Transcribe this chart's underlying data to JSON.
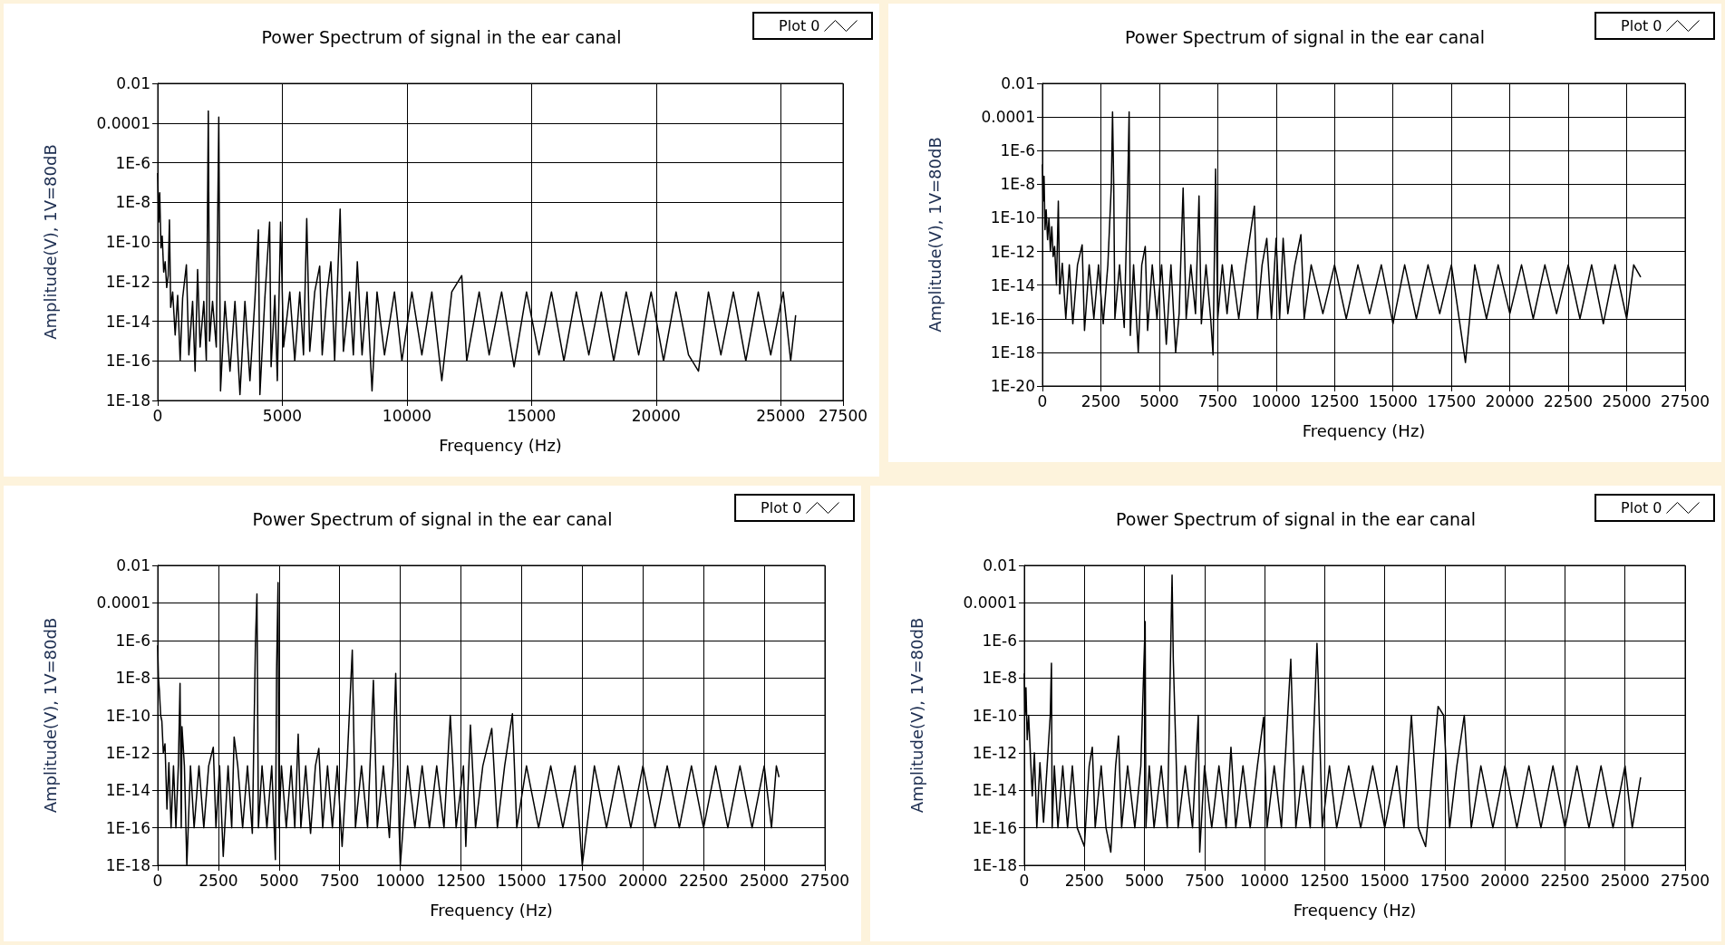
{
  "chart_data": [
    {
      "type": "line",
      "title": "Power Spectrum of signal in the ear canal",
      "xlabel": "Frequency (Hz)",
      "ylabel": "Amplitude(V), 1V=80dB",
      "log": "y",
      "grid": true,
      "legend": "top right",
      "xlim": [
        0,
        27500
      ],
      "xticks": [
        0,
        5000,
        10000,
        15000,
        20000,
        25000,
        27500
      ],
      "ylim": [
        1e-18,
        0.01
      ],
      "yticks": [
        {
          "value": 1e-18,
          "label": "1E-18"
        },
        {
          "value": 1e-16,
          "label": "1E-16"
        },
        {
          "value": 1e-14,
          "label": "1E-14"
        },
        {
          "value": 1e-12,
          "label": "1E-12"
        },
        {
          "value": 1e-10,
          "label": "1E-10"
        },
        {
          "value": 1e-08,
          "label": "1E-8"
        },
        {
          "value": 1e-06,
          "label": "1E-6"
        },
        {
          "value": 0.0001,
          "label": "0.0001"
        },
        {
          "value": 0.01,
          "label": "0.01"
        }
      ],
      "x": [
        0,
        40,
        80,
        130,
        180,
        240,
        300,
        360,
        420,
        470,
        520,
        600,
        700,
        800,
        900,
        1000,
        1150,
        1250,
        1400,
        1500,
        1600,
        1700,
        1850,
        1950,
        2000,
        2030,
        2080,
        2200,
        2350,
        2450,
        2470,
        2520,
        2700,
        2900,
        3100,
        3300,
        3500,
        3700,
        3900,
        4040,
        4100,
        4300,
        4490,
        4550,
        4700,
        4800,
        4930,
        5050,
        5300,
        5500,
        5700,
        5850,
        5980,
        6100,
        6300,
        6500,
        6600,
        6800,
        6950,
        7100,
        7320,
        7450,
        7700,
        7850,
        8010,
        8200,
        8400,
        8600,
        8800,
        9100,
        9500,
        9800,
        10200,
        10600,
        11000,
        11400,
        11800,
        12200,
        12400,
        12900,
        13300,
        13800,
        14300,
        14800,
        15300,
        15800,
        16300,
        16800,
        17300,
        17800,
        18300,
        18800,
        19300,
        19800,
        20300,
        20800,
        21300,
        21700,
        22100,
        22600,
        23100,
        23600,
        24100,
        24600,
        25100,
        25400,
        25600
      ],
      "series": [
        {
          "name": "Plot 0",
          "color": "#000000",
          "values": [
            3e-07,
            1e-09,
            3e-08,
            5e-11,
            2e-10,
            3e-12,
            1e-11,
            5e-13,
            2e-12,
            1.3e-09,
            5e-14,
            3e-13,
            2e-15,
            2e-13,
            1e-16,
            1.5e-13,
            7e-12,
            2e-16,
            1e-13,
            3e-17,
            4e-12,
            5e-16,
            1e-13,
            1e-16,
            1e-08,
            0.0004,
            1e-15,
            1e-13,
            5e-16,
            0.0002,
            1e-08,
            3e-18,
            1e-13,
            3e-17,
            1e-13,
            2e-18,
            1e-13,
            1e-17,
            1.2e-13,
            4e-10,
            2e-18,
            1.5e-13,
            1e-09,
            5e-17,
            2e-13,
            1e-17,
            1e-09,
            5e-16,
            3e-13,
            1e-16,
            3e-13,
            2e-16,
            1.5e-09,
            3e-16,
            3e-13,
            6e-12,
            2e-16,
            3e-13,
            1e-11,
            1e-16,
            4.5e-09,
            3e-16,
            3e-13,
            2e-16,
            1e-11,
            2e-16,
            3e-13,
            3e-18,
            3e-13,
            2e-16,
            3e-13,
            1e-16,
            3e-13,
            2e-16,
            3e-13,
            1e-17,
            3e-13,
            2e-12,
            1e-16,
            3e-13,
            2e-16,
            3e-13,
            5e-17,
            3e-13,
            2e-16,
            3e-13,
            1e-16,
            3e-13,
            2e-16,
            3e-13,
            1e-16,
            3e-13,
            2e-16,
            3e-13,
            1e-16,
            3e-13,
            2e-16,
            3e-17,
            3e-13,
            2e-16,
            3e-13,
            1e-16,
            3e-13,
            2e-16,
            3e-13,
            1e-16,
            2e-14
          ]
        }
      ]
    },
    {
      "type": "line",
      "title": "Power Spectrum of signal in the ear canal",
      "xlabel": "Frequency (Hz)",
      "ylabel": "Amplitude(V), 1V=80dB",
      "log": "y",
      "grid": true,
      "legend": "top right",
      "xlim": [
        0,
        27500
      ],
      "xticks": [
        0,
        2500,
        5000,
        7500,
        10000,
        12500,
        15000,
        17500,
        20000,
        22500,
        25000,
        27500
      ],
      "ylim": [
        1e-20,
        0.01
      ],
      "yticks": [
        {
          "value": 1e-20,
          "label": "1E-20"
        },
        {
          "value": 1e-18,
          "label": "1E-18"
        },
        {
          "value": 1e-16,
          "label": "1E-16"
        },
        {
          "value": 1e-14,
          "label": "1E-14"
        },
        {
          "value": 1e-12,
          "label": "1E-12"
        },
        {
          "value": 1e-10,
          "label": "1E-10"
        },
        {
          "value": 1e-08,
          "label": "1E-8"
        },
        {
          "value": 1e-06,
          "label": "1E-6"
        },
        {
          "value": 0.0001,
          "label": "0.0001"
        },
        {
          "value": 0.01,
          "label": "0.01"
        }
      ],
      "x": [
        0,
        30,
        70,
        110,
        160,
        220,
        280,
        340,
        400,
        460,
        520,
        600,
        680,
        740,
        850,
        1000,
        1150,
        1300,
        1500,
        1700,
        1800,
        2000,
        2200,
        2400,
        2600,
        2800,
        2950,
        3000,
        3050,
        3100,
        3300,
        3500,
        3650,
        3710,
        3760,
        3900,
        4100,
        4250,
        4400,
        4500,
        4700,
        4900,
        5100,
        5300,
        5500,
        5700,
        5850,
        6020,
        6150,
        6350,
        6550,
        6700,
        6800,
        7000,
        7200,
        7300,
        7410,
        7500,
        7700,
        7900,
        8100,
        8400,
        8700,
        9070,
        9200,
        9400,
        9600,
        9800,
        10000,
        10150,
        10300,
        10500,
        10800,
        11060,
        11200,
        11500,
        12000,
        12500,
        13000,
        13500,
        14000,
        14500,
        15000,
        15500,
        16000,
        16500,
        17000,
        17500,
        18100,
        18500,
        19000,
        19500,
        20000,
        20500,
        21000,
        21500,
        22000,
        22500,
        23000,
        23500,
        24000,
        24500,
        25000,
        25300,
        25600
      ],
      "series": [
        {
          "name": "Plot 0",
          "color": "#000000",
          "values": [
            1.5e-07,
            1e-09,
            3e-08,
            2e-11,
            3e-10,
            5e-12,
            1e-10,
            1e-12,
            3e-11,
            5e-13,
            2e-12,
            1e-14,
            1e-09,
            3e-15,
            2e-13,
            1e-16,
            1.6e-13,
            5e-17,
            1.6e-13,
            2.5e-12,
            2e-17,
            1.6e-13,
            1e-16,
            1.6e-13,
            5e-17,
            1.6e-13,
            1e-08,
            0.0002,
            1e-08,
            1e-16,
            1.6e-13,
            3e-17,
            1e-08,
            0.0002,
            1e-17,
            1.6e-13,
            1e-18,
            1.6e-13,
            2e-12,
            2e-17,
            1.6e-13,
            1e-16,
            1.6e-13,
            3e-18,
            1.6e-13,
            1e-18,
            2e-16,
            6e-09,
            1e-16,
            1.6e-13,
            2e-16,
            2e-09,
            5e-17,
            1.6e-13,
            1e-16,
            7e-19,
            8e-08,
            1e-16,
            1.6e-13,
            2e-16,
            1.6e-13,
            1e-16,
            1.6e-13,
            5e-10,
            1e-16,
            1.6e-13,
            6e-12,
            1e-16,
            6e-12,
            1e-16,
            6e-12,
            2e-16,
            1.6e-13,
            1e-11,
            1e-16,
            1.6e-13,
            2e-16,
            1.6e-13,
            1e-16,
            1.6e-13,
            2e-16,
            1.6e-13,
            5e-17,
            1.6e-13,
            1e-16,
            1.6e-13,
            2e-16,
            1.6e-13,
            2.5e-19,
            1.6e-13,
            1e-16,
            1.6e-13,
            2e-16,
            1.6e-13,
            1e-16,
            1.6e-13,
            2e-16,
            1.6e-13,
            1e-16,
            1.6e-13,
            5e-17,
            1.6e-13,
            1e-16,
            1.6e-13,
            3e-14
          ]
        }
      ]
    },
    {
      "type": "line",
      "title": "Power Spectrum of signal in the ear canal",
      "xlabel": "Frequency (Hz)",
      "ylabel": "Amplitude(V), 1V=80dB",
      "log": "y",
      "grid": true,
      "legend": "top right",
      "xlim": [
        0,
        27500
      ],
      "xticks": [
        0,
        2500,
        5000,
        7500,
        10000,
        12500,
        15000,
        17500,
        20000,
        22500,
        25000,
        27500
      ],
      "ylim": [
        1e-18,
        0.01
      ],
      "yticks": [
        {
          "value": 1e-18,
          "label": "1E-18"
        },
        {
          "value": 1e-16,
          "label": "1E-16"
        },
        {
          "value": 1e-14,
          "label": "1E-14"
        },
        {
          "value": 1e-12,
          "label": "1E-12"
        },
        {
          "value": 1e-10,
          "label": "1E-10"
        },
        {
          "value": 1e-08,
          "label": "1E-8"
        },
        {
          "value": 1e-06,
          "label": "1E-6"
        },
        {
          "value": 0.0001,
          "label": "0.0001"
        },
        {
          "value": 0.01,
          "label": "0.01"
        }
      ],
      "x": [
        0,
        30,
        70,
        120,
        170,
        230,
        300,
        380,
        460,
        550,
        650,
        750,
        850,
        920,
        970,
        1000,
        1100,
        1200,
        1350,
        1500,
        1700,
        1900,
        2100,
        2290,
        2400,
        2550,
        2700,
        2900,
        3050,
        3150,
        3300,
        3500,
        3700,
        3900,
        4030,
        4090,
        4150,
        4300,
        4500,
        4700,
        4850,
        4900,
        4960,
        5000,
        5100,
        5300,
        5500,
        5650,
        5790,
        5900,
        6100,
        6300,
        6500,
        6640,
        6800,
        7000,
        7200,
        7400,
        7600,
        7800,
        8020,
        8150,
        8400,
        8650,
        8890,
        9050,
        9300,
        9550,
        9700,
        9810,
        9950,
        10000,
        10300,
        10600,
        10900,
        11200,
        11500,
        11800,
        12060,
        12300,
        12600,
        12700,
        12890,
        13100,
        13400,
        13770,
        14000,
        14300,
        14620,
        14800,
        15200,
        15700,
        16200,
        16700,
        17200,
        17500,
        18000,
        18500,
        19000,
        19500,
        20000,
        20500,
        21000,
        21500,
        22000,
        22500,
        23000,
        23500,
        24000,
        24500,
        25000,
        25300,
        25500,
        25610
      ],
      "series": [
        {
          "name": "Plot 0",
          "color": "#000000",
          "values": [
            5.5e-07,
            1e-08,
            2e-09,
            1e-10,
            5e-11,
            1e-12,
            3e-12,
            1e-15,
            3e-13,
            1e-16,
            2e-13,
            1e-16,
            2e-13,
            5e-09,
            1e-16,
            2.5e-11,
            2e-13,
            1e-18,
            2e-13,
            1e-16,
            2e-13,
            1e-16,
            2e-13,
            2e-12,
            1e-16,
            2e-13,
            3e-18,
            2e-13,
            1e-16,
            7e-12,
            2e-13,
            1e-16,
            2e-13,
            5e-17,
            1e-06,
            0.0003,
            1e-16,
            2e-13,
            1e-16,
            2e-13,
            2e-18,
            2.7e-08,
            0.0012,
            1e-16,
            2e-13,
            1e-16,
            2e-13,
            1e-16,
            1e-11,
            1e-16,
            2e-13,
            5e-17,
            2e-13,
            1.7e-12,
            1e-16,
            2e-13,
            1e-16,
            2e-13,
            1e-17,
            2e-13,
            3e-07,
            1e-16,
            2e-13,
            1e-16,
            7.5e-09,
            1e-16,
            2e-13,
            3e-17,
            2e-13,
            1.7e-08,
            1e-16,
            1e-18,
            2e-13,
            1e-16,
            2e-13,
            1e-16,
            2e-13,
            1e-16,
            1e-10,
            1e-16,
            2e-13,
            1e-17,
            3e-11,
            1e-16,
            2e-13,
            2e-11,
            1e-16,
            2e-13,
            1.2e-10,
            1e-16,
            2e-13,
            1e-16,
            2e-13,
            1e-16,
            2e-13,
            1e-18,
            2e-13,
            1e-16,
            2e-13,
            1e-16,
            2e-13,
            1e-16,
            2e-13,
            1e-16,
            2e-13,
            1e-16,
            2e-13,
            1e-16,
            2e-13,
            1e-16,
            2e-13,
            1e-16,
            2e-13,
            5e-14
          ]
        }
      ]
    },
    {
      "type": "line",
      "title": "Power Spectrum of signal in the ear canal",
      "xlabel": "Frequency (Hz)",
      "ylabel": "Amplitude(V), 1V=80dB",
      "log": "y",
      "grid": true,
      "legend": "top right",
      "xlim": [
        0,
        27500
      ],
      "xticks": [
        0,
        2500,
        5000,
        7500,
        10000,
        12500,
        15000,
        17500,
        20000,
        22500,
        25000,
        27500
      ],
      "ylim": [
        1e-18,
        0.01
      ],
      "yticks": [
        {
          "value": 1e-18,
          "label": "1E-18"
        },
        {
          "value": 1e-16,
          "label": "1E-16"
        },
        {
          "value": 1e-14,
          "label": "1E-14"
        },
        {
          "value": 1e-12,
          "label": "1E-12"
        },
        {
          "value": 1e-10,
          "label": "1E-10"
        },
        {
          "value": 1e-08,
          "label": "1E-8"
        },
        {
          "value": 1e-06,
          "label": "1E-6"
        },
        {
          "value": 0.0001,
          "label": "0.0001"
        },
        {
          "value": 0.01,
          "label": "0.01"
        }
      ],
      "x": [
        0,
        30,
        70,
        120,
        180,
        250,
        330,
        420,
        520,
        650,
        800,
        950,
        1080,
        1130,
        1160,
        1250,
        1400,
        1600,
        1800,
        2000,
        2200,
        2500,
        2700,
        2830,
        2950,
        3200,
        3400,
        3600,
        3800,
        3920,
        4050,
        4300,
        4600,
        4850,
        5030,
        5060,
        5200,
        5400,
        5700,
        5950,
        6150,
        6200,
        6400,
        6700,
        7000,
        7240,
        7300,
        7500,
        7800,
        8100,
        8400,
        8600,
        8800,
        9100,
        9400,
        9700,
        9960,
        10100,
        10400,
        10700,
        11090,
        11300,
        11600,
        11900,
        12180,
        12230,
        12400,
        12700,
        13000,
        13500,
        14000,
        14500,
        15000,
        15500,
        15800,
        16110,
        16400,
        16700,
        17000,
        17220,
        17450,
        17700,
        18000,
        18310,
        18600,
        19000,
        19500,
        20000,
        20500,
        21000,
        21500,
        22000,
        22500,
        23000,
        23500,
        24000,
        24500,
        25000,
        25300,
        25650
      ],
      "series": [
        {
          "name": "Plot 0",
          "color": "#000000",
          "values": [
            1.7e-08,
            1e-10,
            3e-09,
            5e-12,
            1e-10,
            1e-12,
            5e-15,
            1e-12,
            1e-16,
            3e-13,
            2e-16,
            2e-13,
            1e-10,
            6e-08,
            1e-16,
            2e-13,
            1e-16,
            2e-13,
            1e-16,
            2e-13,
            1e-16,
            1e-17,
            2e-13,
            2e-12,
            1e-16,
            2e-13,
            1e-16,
            5e-18,
            2e-13,
            8e-12,
            1e-16,
            2e-13,
            1e-16,
            2e-13,
            1e-05,
            1e-16,
            2e-13,
            1e-16,
            2e-13,
            1e-16,
            0.003,
            1e-07,
            1e-16,
            2e-13,
            1e-16,
            1e-10,
            5e-18,
            2e-13,
            1e-16,
            2e-13,
            1e-16,
            2e-12,
            1e-16,
            2e-13,
            1e-16,
            2e-13,
            8e-11,
            1e-16,
            2e-13,
            1e-16,
            1e-07,
            1e-16,
            2e-13,
            1e-16,
            7e-07,
            1e-08,
            1e-16,
            2e-13,
            1e-16,
            2e-13,
            1e-16,
            2e-13,
            1e-16,
            2e-13,
            1e-16,
            1e-10,
            1e-16,
            1e-17,
            2e-13,
            3e-10,
            1e-10,
            1e-16,
            2e-13,
            1e-10,
            1e-16,
            2e-13,
            1e-16,
            2e-13,
            1e-16,
            2e-13,
            1e-16,
            2e-13,
            1e-16,
            2e-13,
            1e-16,
            2e-13,
            1e-16,
            2e-13,
            1e-16,
            5e-14
          ]
        }
      ]
    }
  ]
}
